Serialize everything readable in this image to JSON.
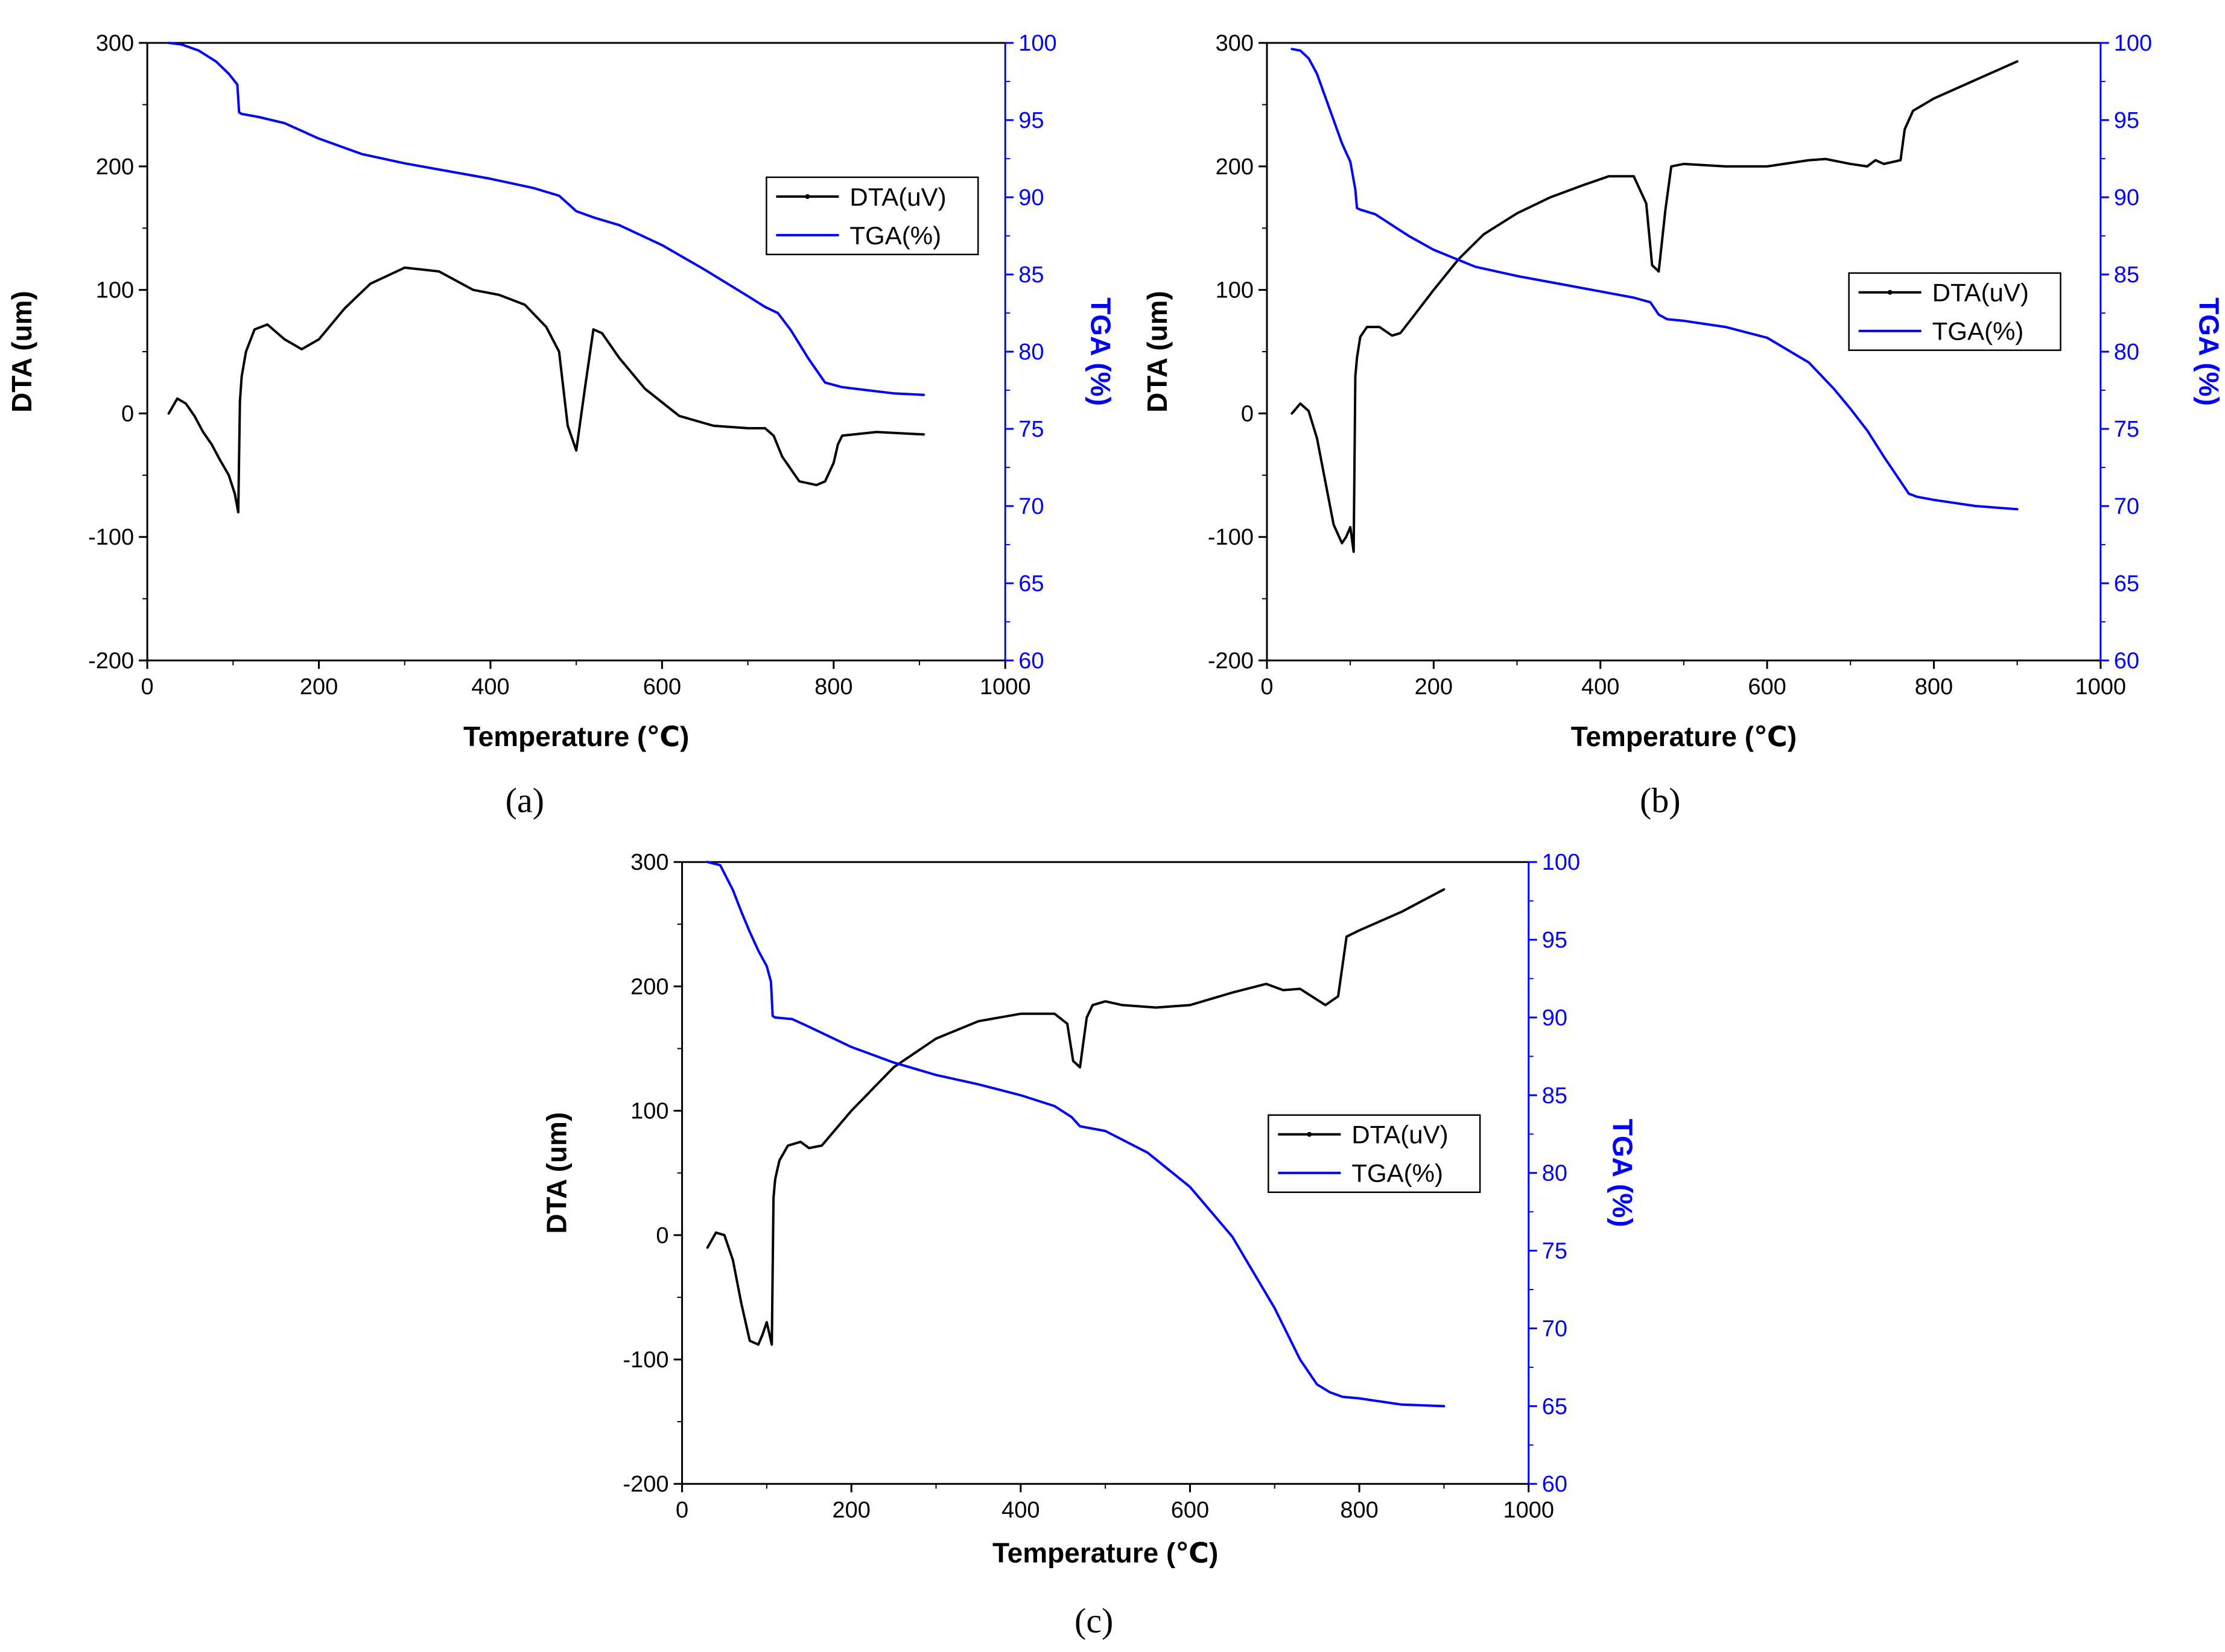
{
  "colors": {
    "dta": "#000000",
    "tga": "#0000ff",
    "axis": "#000000",
    "right_axis": "#0000ff"
  },
  "chart_data": [
    {
      "type": "line",
      "caption": "(a)",
      "xlabel": "Temperature (℃)",
      "ylabel": "DTA (um)",
      "y2label": "TGA (%)",
      "xlim": [
        0,
        1000
      ],
      "ylim": [
        -200,
        300
      ],
      "y2lim": [
        60,
        100
      ],
      "xticks": [
        "0",
        "200",
        "400",
        "600",
        "800",
        "1000"
      ],
      "yticks": [
        "-200",
        "-100",
        "0",
        "100",
        "200",
        "300"
      ],
      "y2ticks": [
        "60",
        "65",
        "70",
        "75",
        "80",
        "85",
        "90",
        "95",
        "100"
      ],
      "legend": [
        "DTA(uV)",
        "TGA(%)"
      ],
      "legend_position": "top-right",
      "series": [
        {
          "name": "DTA(uV)",
          "axis": "left",
          "color": "#000000",
          "x": [
            25,
            35,
            45,
            55,
            65,
            75,
            85,
            95,
            102,
            106,
            108,
            110,
            115,
            125,
            140,
            160,
            180,
            200,
            230,
            260,
            300,
            340,
            380,
            410,
            440,
            465,
            480,
            490,
            500,
            510,
            520,
            530,
            550,
            580,
            620,
            660,
            700,
            720,
            730,
            740,
            760,
            780,
            790,
            800,
            805,
            810,
            850,
            905
          ],
          "y": [
            0,
            12,
            8,
            -2,
            -15,
            -25,
            -38,
            -50,
            -65,
            -80,
            10,
            30,
            50,
            68,
            72,
            60,
            52,
            60,
            85,
            105,
            118,
            115,
            100,
            96,
            88,
            70,
            50,
            -10,
            -30,
            20,
            68,
            65,
            45,
            20,
            -2,
            -10,
            -12,
            -12,
            -18,
            -35,
            -55,
            -58,
            -55,
            -40,
            -25,
            -18,
            -15,
            -17
          ]
        },
        {
          "name": "TGA(%)",
          "axis": "right",
          "color": "#0000ff",
          "x": [
            25,
            40,
            60,
            80,
            95,
            105,
            107,
            110,
            130,
            160,
            200,
            250,
            300,
            350,
            400,
            450,
            480,
            490,
            500,
            520,
            550,
            600,
            650,
            700,
            720,
            735,
            750,
            770,
            790,
            810,
            840,
            870,
            905
          ],
          "y": [
            100,
            99.9,
            99.5,
            98.8,
            98,
            97.3,
            95.5,
            95.4,
            95.2,
            94.8,
            93.8,
            92.8,
            92.2,
            91.7,
            91.2,
            90.6,
            90.1,
            89.6,
            89.1,
            88.7,
            88.2,
            86.9,
            85.3,
            83.6,
            82.9,
            82.5,
            81.4,
            79.6,
            78.0,
            77.7,
            77.5,
            77.3,
            77.2
          ]
        }
      ]
    },
    {
      "type": "line",
      "caption": "(b)",
      "xlabel": "Temperature (℃)",
      "ylabel": "DTA (um)",
      "y2label": "TGA (%)",
      "xlim": [
        0,
        1000
      ],
      "ylim": [
        -200,
        300
      ],
      "y2lim": [
        60,
        100
      ],
      "xticks": [
        "0",
        "200",
        "400",
        "600",
        "800",
        "1000"
      ],
      "yticks": [
        "-200",
        "-100",
        "0",
        "100",
        "200",
        "300"
      ],
      "y2ticks": [
        "60",
        "65",
        "70",
        "75",
        "80",
        "85",
        "90",
        "95",
        "100"
      ],
      "legend": [
        "DTA(uV)",
        "TGA(%)"
      ],
      "legend_position": "right",
      "series": [
        {
          "name": "DTA(uV)",
          "axis": "left",
          "color": "#000000",
          "x": [
            30,
            40,
            50,
            60,
            70,
            80,
            90,
            95,
            100,
            104,
            106,
            108,
            112,
            120,
            135,
            150,
            160,
            175,
            200,
            230,
            260,
            300,
            340,
            380,
            410,
            440,
            455,
            462,
            470,
            478,
            485,
            500,
            550,
            600,
            650,
            670,
            700,
            720,
            730,
            740,
            760,
            765,
            775,
            800,
            850,
            900
          ],
          "y": [
            0,
            8,
            2,
            -20,
            -55,
            -90,
            -105,
            -100,
            -92,
            -112,
            30,
            45,
            62,
            70,
            70,
            63,
            65,
            78,
            100,
            125,
            145,
            162,
            175,
            185,
            192,
            192,
            170,
            120,
            115,
            165,
            200,
            202,
            200,
            200,
            205,
            206,
            202,
            200,
            205,
            202,
            205,
            230,
            245,
            255,
            270,
            285
          ]
        },
        {
          "name": "TGA(%)",
          "axis": "right",
          "color": "#0000ff",
          "x": [
            30,
            40,
            50,
            60,
            70,
            80,
            90,
            100,
            106,
            108,
            112,
            130,
            150,
            170,
            200,
            250,
            300,
            350,
            400,
            440,
            460,
            470,
            480,
            500,
            550,
            600,
            650,
            680,
            700,
            720,
            740,
            760,
            770,
            780,
            800,
            850,
            900
          ],
          "y": [
            99.6,
            99.5,
            99,
            98,
            96.5,
            95,
            93.5,
            92.3,
            90.5,
            89.3,
            89.2,
            88.9,
            88.2,
            87.5,
            86.6,
            85.5,
            84.9,
            84.4,
            83.9,
            83.5,
            83.2,
            82.4,
            82.1,
            82.0,
            81.6,
            80.9,
            79.3,
            77.6,
            76.3,
            74.9,
            73.2,
            71.6,
            70.8,
            70.6,
            70.4,
            70.0,
            69.8
          ]
        }
      ]
    },
    {
      "type": "line",
      "caption": "(c)",
      "xlabel": "Temperature (℃)",
      "ylabel": "DTA (um)",
      "y2label": "TGA (%)",
      "xlim": [
        0,
        1000
      ],
      "ylim": [
        -200,
        300
      ],
      "y2lim": [
        60,
        100
      ],
      "xticks": [
        "0",
        "200",
        "400",
        "600",
        "800",
        "1000"
      ],
      "yticks": [
        "-200",
        "-100",
        "0",
        "100",
        "200",
        "300"
      ],
      "y2ticks": [
        "60",
        "65",
        "70",
        "75",
        "80",
        "85",
        "90",
        "95",
        "100"
      ],
      "legend": [
        "DTA(uV)",
        "TGA(%)"
      ],
      "legend_position": "right",
      "series": [
        {
          "name": "DTA(uV)",
          "axis": "left",
          "color": "#000000",
          "x": [
            30,
            40,
            50,
            60,
            70,
            80,
            90,
            95,
            100,
            106,
            108,
            110,
            115,
            125,
            140,
            150,
            165,
            200,
            250,
            300,
            350,
            400,
            440,
            455,
            462,
            470,
            478,
            485,
            500,
            520,
            560,
            600,
            650,
            690,
            710,
            730,
            760,
            775,
            785,
            800,
            850,
            900
          ],
          "y": [
            -10,
            2,
            0,
            -20,
            -55,
            -85,
            -88,
            -80,
            -70,
            -88,
            30,
            45,
            60,
            72,
            75,
            70,
            72,
            100,
            135,
            158,
            172,
            178,
            178,
            170,
            140,
            135,
            175,
            185,
            188,
            185,
            183,
            185,
            195,
            202,
            197,
            198,
            185,
            192,
            240,
            245,
            260,
            278
          ]
        },
        {
          "name": "TGA(%)",
          "axis": "right",
          "color": "#0000ff",
          "x": [
            30,
            45,
            60,
            70,
            80,
            90,
            100,
            105,
            107,
            110,
            130,
            150,
            200,
            250,
            300,
            350,
            400,
            440,
            460,
            470,
            500,
            550,
            600,
            650,
            700,
            730,
            750,
            765,
            775,
            780,
            800,
            850,
            900
          ],
          "y": [
            100,
            99.8,
            98.2,
            96.8,
            95.5,
            94.3,
            93.3,
            92.3,
            90.1,
            90.0,
            89.9,
            89.4,
            88.1,
            87.1,
            86.3,
            85.7,
            85.0,
            84.3,
            83.6,
            83.0,
            82.7,
            81.3,
            79.1,
            75.9,
            71.3,
            68.0,
            66.4,
            65.9,
            65.7,
            65.6,
            65.5,
            65.1,
            65.0
          ]
        }
      ]
    }
  ]
}
